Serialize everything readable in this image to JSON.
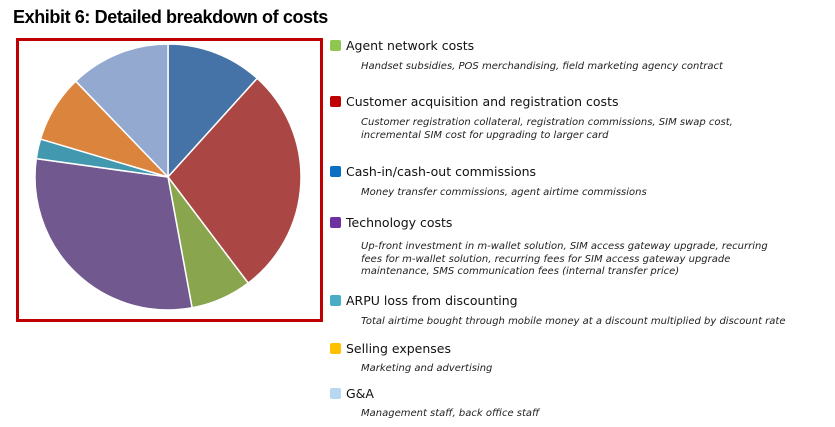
{
  "title": "Exhibit 6: Detailed breakdown of costs",
  "colors": {
    "frame": "#c00000"
  },
  "chart_data": {
    "type": "pie",
    "title": "Exhibit 6: Detailed breakdown of costs",
    "start_angle_deg": 0,
    "direction": "clockwise",
    "slices_in_draw_order": [
      {
        "name": "Cash-in/cash-out commissions",
        "value": 11.7,
        "color": "#4572a7"
      },
      {
        "name": "Customer acquisition and registration costs",
        "value": 28.0,
        "color": "#aa4643"
      },
      {
        "name": "Agent network costs",
        "value": 7.4,
        "color": "#89a54e"
      },
      {
        "name": "Technology costs",
        "value": 30.1,
        "color": "#71588f"
      },
      {
        "name": "ARPU loss from discounting",
        "value": 2.4,
        "color": "#4198af"
      },
      {
        "name": "Selling expenses",
        "value": 8.2,
        "color": "#db843d"
      },
      {
        "name": "G&A",
        "value": 12.2,
        "color": "#93a9cf"
      }
    ],
    "legend_position": "right",
    "units": "percent (estimated from slice angles)"
  },
  "legend": [
    {
      "label": "Agent network costs",
      "color": "#8fc751",
      "desc": "Handset subsidies, POS merchandising, field marketing agency contract"
    },
    {
      "label": "Customer acquisition  and registration  costs",
      "color": "#c00000",
      "desc": "Customer registration collateral, registration commissions, SIM swap cost,\nincremental SIM cost for upgrading to larger card"
    },
    {
      "label": "Cash-in/cash-out  commissions",
      "color": "#0b6fc2",
      "desc": "Money transfer commissions, agent airtime commissions"
    },
    {
      "label": "Technology  costs",
      "color": "#7030a0",
      "desc": "Up-front investment in m-wallet solution, SIM access gateway upgrade, recurring\nfees for m-wallet solution, recurring fees for SIM access gateway upgrade\nmaintenance, SMS communication fees (internal transfer price)"
    },
    {
      "label": "ARPU loss from discounting",
      "color": "#4bacc6",
      "desc": "Total airtime bought through mobile money at a discount multiplied by discount rate"
    },
    {
      "label": "Selling  expenses",
      "color": "#ffc000",
      "desc": "Marketing and advertising"
    },
    {
      "label": "G&A",
      "color": "#b7d7f2",
      "desc": "Management staff, back office staff"
    }
  ]
}
